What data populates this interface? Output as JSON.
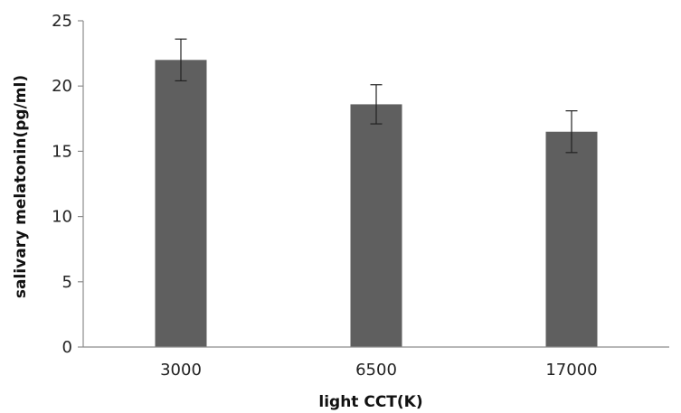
{
  "chart_data": {
    "type": "bar",
    "title": "",
    "xlabel": "light CCT(K)",
    "ylabel": "salivary melatonin(pg/ml)",
    "categories": [
      "3000",
      "6500",
      "17000"
    ],
    "series": [
      {
        "values": [
          22.0,
          18.6,
          16.5
        ],
        "error": [
          1.6,
          1.5,
          1.6
        ],
        "color": "#5f5f5f"
      }
    ],
    "ylim": [
      0,
      25
    ],
    "yticks": [
      0,
      5,
      10,
      15,
      20,
      25
    ],
    "grid": false,
    "legend": "none"
  }
}
